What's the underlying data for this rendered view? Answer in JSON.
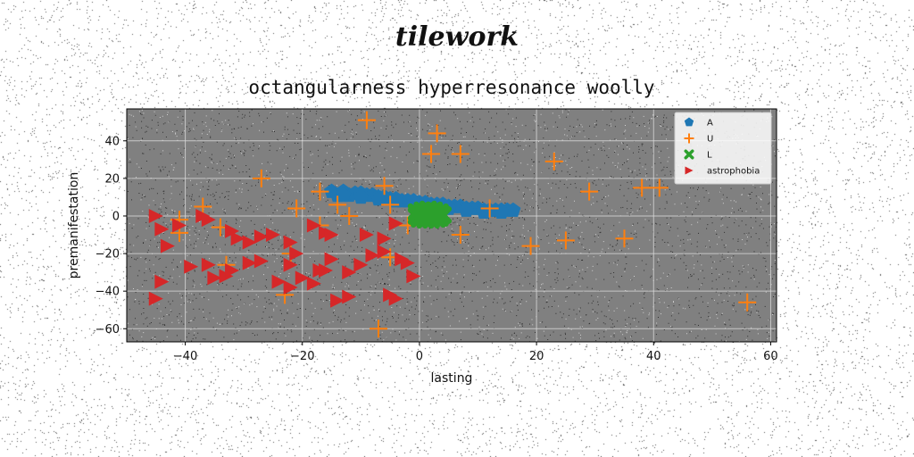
{
  "suptitle": "tilework",
  "chart_data": {
    "type": "scatter",
    "title": "octangularness hyperresonance woolly",
    "xlabel": "lasting",
    "ylabel": "premanifestation",
    "xlim": [
      -50,
      61
    ],
    "ylim": [
      -67,
      57
    ],
    "xticks": [
      -40,
      -20,
      0,
      20,
      40,
      60
    ],
    "yticks": [
      -60,
      -40,
      -20,
      0,
      20,
      40
    ],
    "grid": true,
    "legend_position": "top-right",
    "plot_background": "#808080",
    "series": [
      {
        "name": "A",
        "marker": "pentagon",
        "color": "#1f77b4",
        "points": [
          [
            -15,
            13
          ],
          [
            -14,
            11
          ],
          [
            -13,
            13
          ],
          [
            -12,
            11
          ],
          [
            -11,
            12
          ],
          [
            -10,
            12
          ],
          [
            -9,
            11
          ],
          [
            -8,
            11
          ],
          [
            -7,
            10
          ],
          [
            -6,
            10
          ],
          [
            -5,
            9
          ],
          [
            -4,
            9
          ],
          [
            -3,
            8
          ],
          [
            -2,
            8
          ],
          [
            -1,
            8
          ],
          [
            0,
            7
          ],
          [
            1,
            7
          ],
          [
            2,
            6
          ],
          [
            3,
            6
          ],
          [
            4,
            6
          ],
          [
            5,
            5
          ],
          [
            6,
            5
          ],
          [
            7,
            5
          ],
          [
            8,
            4
          ],
          [
            9,
            4
          ],
          [
            10,
            4
          ],
          [
            11,
            3
          ],
          [
            12,
            3
          ],
          [
            13,
            3
          ],
          [
            14,
            3
          ],
          [
            15,
            3
          ],
          [
            16,
            3
          ],
          [
            -13,
            11
          ],
          [
            -10,
            10
          ],
          [
            -7,
            9
          ],
          [
            -4,
            8
          ],
          [
            -1,
            7
          ],
          [
            2,
            5
          ],
          [
            5,
            4
          ],
          [
            8,
            3
          ],
          [
            11,
            2
          ],
          [
            14,
            2
          ]
        ]
      },
      {
        "name": "U",
        "marker": "plus",
        "color": "#ff7f0e",
        "points": [
          [
            -9,
            51
          ],
          [
            3,
            44
          ],
          [
            2,
            33
          ],
          [
            7,
            33
          ],
          [
            23,
            29
          ],
          [
            -27,
            20
          ],
          [
            -6,
            16
          ],
          [
            -17,
            13
          ],
          [
            29,
            13
          ],
          [
            38,
            15
          ],
          [
            41,
            15
          ],
          [
            -37,
            5
          ],
          [
            -14,
            6
          ],
          [
            -5,
            6
          ],
          [
            -21,
            4
          ],
          [
            12,
            4
          ],
          [
            -12,
            0
          ],
          [
            -41,
            -2
          ],
          [
            -34,
            -6
          ],
          [
            -17,
            -5
          ],
          [
            -41,
            -9
          ],
          [
            -2,
            -5
          ],
          [
            7,
            -10
          ],
          [
            25,
            -13
          ],
          [
            35,
            -12
          ],
          [
            19,
            -16
          ],
          [
            -22,
            -20
          ],
          [
            -5,
            -22
          ],
          [
            -33,
            -26
          ],
          [
            -23,
            -42
          ],
          [
            56,
            -46
          ],
          [
            -7,
            -60
          ]
        ]
      },
      {
        "name": "L",
        "marker": "x",
        "color": "#2ca02c",
        "points": [
          [
            -0.5,
            2
          ],
          [
            0.5,
            3
          ],
          [
            1.5,
            3.5
          ],
          [
            2.5,
            3
          ],
          [
            3.5,
            2
          ],
          [
            4,
            0.5
          ],
          [
            -0.5,
            0
          ],
          [
            0.5,
            0.5
          ],
          [
            1.5,
            0.5
          ],
          [
            2.5,
            0
          ],
          [
            3.5,
            -1
          ],
          [
            0,
            -1.5
          ],
          [
            1,
            -2
          ],
          [
            2,
            -2
          ],
          [
            3,
            -1.5
          ],
          [
            1.5,
            1.5
          ],
          [
            2.5,
            1.5
          ]
        ]
      },
      {
        "name": "astrophobia",
        "marker": "triangle-right",
        "color": "#d62728",
        "points": [
          [
            -45,
            0
          ],
          [
            -44,
            -7
          ],
          [
            -41,
            -5
          ],
          [
            -37,
            0
          ],
          [
            -36,
            -2
          ],
          [
            -32,
            -8
          ],
          [
            -31,
            -12
          ],
          [
            -29,
            -14
          ],
          [
            -27,
            -11
          ],
          [
            -25,
            -10
          ],
          [
            -22,
            -14
          ],
          [
            -21,
            -20
          ],
          [
            -18,
            -5
          ],
          [
            -16,
            -9
          ],
          [
            -15,
            -10
          ],
          [
            -9,
            -10
          ],
          [
            -6,
            -12
          ],
          [
            -4,
            -4
          ],
          [
            -43,
            -16
          ],
          [
            -44,
            -35
          ],
          [
            -45,
            -44
          ],
          [
            -39,
            -27
          ],
          [
            -36,
            -26
          ],
          [
            -35,
            -33
          ],
          [
            -33,
            -32
          ],
          [
            -32,
            -29
          ],
          [
            -29,
            -25
          ],
          [
            -27,
            -24
          ],
          [
            -24,
            -35
          ],
          [
            -22,
            -38
          ],
          [
            -20,
            -33
          ],
          [
            -18,
            -36
          ],
          [
            -16,
            -29
          ],
          [
            -15,
            -23
          ],
          [
            -12,
            -30
          ],
          [
            -10,
            -26
          ],
          [
            -8,
            -21
          ],
          [
            -6,
            -19
          ],
          [
            -3,
            -23
          ],
          [
            -2,
            -25
          ],
          [
            -1,
            -32
          ],
          [
            -14,
            -45
          ],
          [
            -12,
            -43
          ],
          [
            -5,
            -42
          ],
          [
            -4,
            -44
          ],
          [
            -22,
            -26
          ],
          [
            -17,
            -29
          ]
        ]
      }
    ]
  }
}
